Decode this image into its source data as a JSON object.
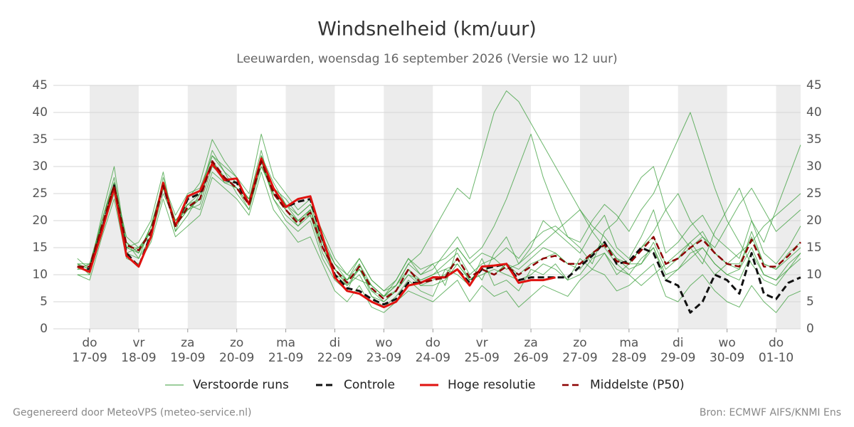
{
  "chart_data": {
    "type": "line",
    "title": "Windsnelheid (km/uur)",
    "subtitle": "Leeuwarden, woensdag 16 september 2026 (Versie wo 12 uur)",
    "x": [
      -0.25,
      0,
      0.25,
      0.5,
      0.75,
      1,
      1.25,
      1.5,
      1.75,
      2,
      2.25,
      2.5,
      2.75,
      3,
      3.25,
      3.5,
      3.75,
      4,
      4.25,
      4.5,
      4.75,
      5,
      5.25,
      5.5,
      5.75,
      6,
      6.25,
      6.5,
      6.75,
      7,
      7.25,
      7.5,
      7.75,
      8,
      8.25,
      8.5,
      8.75,
      9,
      9.25,
      9.5,
      9.75,
      10,
      10.25,
      10.5,
      10.75,
      11,
      11.25,
      11.5,
      11.75,
      12,
      12.25,
      12.5,
      12.75,
      13,
      13.25,
      13.5,
      13.75,
      14,
      14.25,
      14.5
    ],
    "xlim": [
      -0.74,
      14.5
    ],
    "xticks": [
      {
        "value": 0,
        "label": [
          "do",
          "17-09"
        ]
      },
      {
        "value": 1,
        "label": [
          "vr",
          "18-09"
        ]
      },
      {
        "value": 2,
        "label": [
          "za",
          "19-09"
        ]
      },
      {
        "value": 3,
        "label": [
          "zo",
          "20-09"
        ]
      },
      {
        "value": 4,
        "label": [
          "ma",
          "21-09"
        ]
      },
      {
        "value": 5,
        "label": [
          "di",
          "22-09"
        ]
      },
      {
        "value": 6,
        "label": [
          "wo",
          "23-09"
        ]
      },
      {
        "value": 7,
        "label": [
          "do",
          "24-09"
        ]
      },
      {
        "value": 8,
        "label": [
          "vr",
          "25-09"
        ]
      },
      {
        "value": 9,
        "label": [
          "za",
          "26-09"
        ]
      },
      {
        "value": 10,
        "label": [
          "zo",
          "27-09"
        ]
      },
      {
        "value": 11,
        "label": [
          "ma",
          "28-09"
        ]
      },
      {
        "value": 12,
        "label": [
          "di",
          "29-09"
        ]
      },
      {
        "value": 13,
        "label": [
          "wo",
          "30-09"
        ]
      },
      {
        "value": 14,
        "label": [
          "do",
          "01-10"
        ]
      }
    ],
    "ylim": [
      0,
      45
    ],
    "yticks": [
      0,
      5,
      10,
      15,
      20,
      25,
      30,
      35,
      40,
      45
    ],
    "grid": true,
    "shade_alternate_days": true,
    "ensemble": {
      "name": "Verstoorde runs",
      "color": "#3a9d3a",
      "members": [
        [
          12,
          10,
          20,
          28,
          16,
          13,
          19,
          27,
          18,
          21,
          25,
          33,
          29,
          25,
          22,
          30,
          26,
          24,
          21,
          23,
          18,
          13,
          10,
          9,
          8,
          6,
          9,
          13,
          10,
          12,
          8,
          15,
          12,
          9,
          14,
          17,
          12,
          15,
          20,
          18,
          16,
          14,
          18,
          21,
          15,
          13,
          17,
          22,
          14,
          16,
          19,
          21,
          17,
          15,
          13,
          20,
          14,
          12,
          15,
          19
        ],
        [
          11,
          12,
          18,
          25,
          14,
          15,
          17,
          25,
          20,
          23,
          22,
          29,
          27,
          27,
          24,
          33,
          24,
          20,
          18,
          20,
          13,
          9,
          7,
          12,
          6,
          4,
          6,
          9,
          7,
          6,
          11,
          10,
          8,
          13,
          8,
          9,
          7,
          11,
          10,
          12,
          9,
          13,
          11,
          14,
          10,
          12,
          12,
          15,
          9,
          11,
          13,
          15,
          12,
          10,
          9,
          14,
          10,
          9,
          11,
          13
        ],
        [
          13,
          11,
          21,
          30,
          15,
          16,
          20,
          29,
          18,
          24,
          27,
          35,
          31,
          28,
          25,
          36,
          28,
          25,
          22,
          24,
          17,
          12,
          9,
          13,
          9,
          7,
          8,
          12,
          10,
          11,
          14,
          17,
          13,
          15,
          19,
          24,
          30,
          36,
          28,
          22,
          17,
          15,
          12,
          18,
          20,
          24,
          28,
          30,
          22,
          18,
          15,
          12,
          18,
          22,
          26,
          20,
          16,
          22,
          28,
          34
        ],
        [
          10,
          9,
          17,
          24,
          13,
          12,
          16,
          24,
          17,
          19,
          21,
          28,
          26,
          24,
          21,
          29,
          22,
          19,
          16,
          17,
          12,
          7,
          5,
          8,
          4,
          3,
          5,
          7,
          6,
          5,
          7,
          9,
          5,
          8,
          6,
          7,
          4,
          6,
          8,
          7,
          6,
          9,
          11,
          10,
          7,
          8,
          10,
          12,
          6,
          5,
          8,
          10,
          7,
          5,
          4,
          8,
          5,
          3,
          6,
          7
        ],
        [
          12,
          12,
          20,
          27,
          17,
          15,
          18,
          27,
          21,
          25,
          26,
          32,
          30,
          28,
          23,
          32,
          27,
          23,
          20,
          22,
          16,
          11,
          9,
          11,
          7,
          6,
          8,
          11,
          9,
          10,
          12,
          14,
          10,
          12,
          13,
          11,
          12,
          14,
          16,
          18,
          20,
          22,
          19,
          17,
          14,
          12,
          15,
          18,
          22,
          25,
          20,
          17,
          15,
          19,
          23,
          26,
          22,
          18,
          20,
          22
        ],
        [
          11,
          11,
          19,
          26,
          16,
          14,
          19,
          26,
          19,
          22,
          23,
          30,
          28,
          26,
          22,
          31,
          24,
          21,
          19,
          21,
          14,
          10,
          8,
          10,
          6,
          5,
          7,
          10,
          8,
          8,
          9,
          12,
          9,
          10,
          11,
          10,
          9,
          10,
          12,
          11,
          9,
          10,
          13,
          14,
          11,
          10,
          13,
          15,
          10,
          11,
          14,
          15,
          12,
          10,
          11,
          15,
          10,
          9,
          12,
          14
        ],
        [
          10,
          10,
          18,
          27,
          14,
          13,
          17,
          28,
          19,
          23,
          24,
          31,
          27,
          26,
          24,
          30,
          25,
          22,
          20,
          21,
          15,
          10,
          9,
          12,
          8,
          6,
          7,
          10,
          9,
          10,
          11,
          12,
          9,
          11,
          10,
          12,
          11,
          13,
          15,
          14,
          12,
          11,
          14,
          16,
          13,
          11,
          12,
          16,
          11,
          13,
          16,
          18,
          14,
          12,
          11,
          18,
          12,
          11,
          13,
          15
        ],
        [
          12,
          11,
          19,
          26,
          15,
          15,
          18,
          26,
          20,
          22,
          24,
          31,
          28,
          26,
          23,
          31,
          25,
          22,
          19,
          22,
          15,
          11,
          8,
          11,
          7,
          5,
          7,
          11,
          8,
          9,
          10,
          13,
          9,
          11,
          10,
          12,
          10,
          12,
          13,
          14,
          12,
          12,
          14,
          16,
          13,
          12,
          15,
          17,
          12,
          13,
          15,
          17,
          14,
          12,
          12,
          17,
          12,
          11,
          14,
          16
        ],
        [
          11,
          12,
          19,
          26,
          15,
          14,
          18,
          26,
          19,
          22,
          24,
          31,
          28,
          26,
          23,
          31,
          25,
          22,
          20,
          22,
          15,
          11,
          9,
          11,
          8,
          6,
          8,
          12,
          14,
          18,
          22,
          26,
          24,
          32,
          40,
          44,
          42,
          38,
          34,
          30,
          26,
          22,
          18,
          15,
          12,
          10,
          8,
          10,
          12,
          14,
          16,
          13,
          10,
          12,
          14,
          16,
          19,
          21,
          23,
          25
        ],
        [
          12,
          11,
          20,
          27,
          16,
          14,
          19,
          27,
          20,
          23,
          25,
          32,
          29,
          27,
          24,
          32,
          26,
          23,
          21,
          23,
          16,
          12,
          10,
          13,
          9,
          7,
          9,
          13,
          11,
          12,
          13,
          15,
          12,
          14,
          13,
          15,
          13,
          16,
          18,
          19,
          17,
          16,
          20,
          23,
          21,
          18,
          22,
          25,
          30,
          35,
          40,
          33,
          26,
          20,
          16,
          12,
          9,
          8,
          11,
          14
        ]
      ]
    },
    "series": [
      {
        "name": "Controle",
        "color": "#111111",
        "dashed": true,
        "width": 3,
        "values": [
          11.5,
          11,
          18.5,
          26.5,
          14,
          11.5,
          17.5,
          26.5,
          19,
          24,
          25,
          30.5,
          27.5,
          27,
          23,
          31,
          25.5,
          22.5,
          23.5,
          24,
          16.5,
          10,
          7.5,
          7,
          5.5,
          4.5,
          5.5,
          8.5,
          8.5,
          9.5,
          9.5,
          11,
          8.5,
          11,
          11.5,
          12,
          9,
          9.5,
          9.5,
          9.5,
          9.5,
          11.5,
          13.5,
          16,
          12,
          12.5,
          15,
          14,
          9,
          8,
          3,
          5,
          10,
          9,
          6.5,
          14,
          6.5,
          5.5,
          8.5,
          9.5
        ]
      },
      {
        "name": "Hoge resolutie",
        "color": "#e0120f",
        "dashed": false,
        "width": 3,
        "values": [
          11.5,
          10.5,
          18,
          26,
          13.5,
          11.5,
          17,
          27,
          19,
          24.5,
          25.5,
          30.5,
          27.5,
          27.8,
          23,
          31.5,
          26,
          22.5,
          24,
          24.5,
          17,
          9.5,
          7,
          6.5,
          5,
          4,
          5,
          8,
          8.5,
          9.5,
          9.5,
          11,
          8,
          11.5,
          11.7,
          12,
          8.5,
          9,
          9,
          9.5,
          null,
          null,
          null,
          null,
          null,
          null,
          null,
          null,
          null,
          null,
          null,
          null,
          null,
          null,
          null,
          null,
          null,
          null,
          null,
          null
        ]
      },
      {
        "name": "Middelste (P50)",
        "color": "#8b0000",
        "dashed": true,
        "width": 2.5,
        "values": [
          11.5,
          11.5,
          19,
          26.5,
          15.5,
          14.5,
          18,
          26.5,
          19,
          22.5,
          24,
          31,
          28,
          26,
          23,
          31,
          25,
          22,
          19.5,
          21.5,
          15,
          11,
          8.5,
          11.5,
          7.5,
          5.5,
          7,
          11,
          8.5,
          9,
          9.5,
          13,
          9.5,
          11,
          10,
          11.5,
          10,
          11.5,
          13,
          13.5,
          12,
          12,
          14,
          15.5,
          12.5,
          12,
          14.5,
          17,
          12,
          13,
          15,
          16.5,
          14,
          12,
          11.5,
          16.5,
          11.5,
          11.5,
          13.5,
          16
        ]
      }
    ]
  },
  "footer": {
    "left": "Gegenereerd door MeteoVPS (meteo-service.nl)",
    "right": "Bron: ECMWF AIFS/KNMI Ens"
  }
}
